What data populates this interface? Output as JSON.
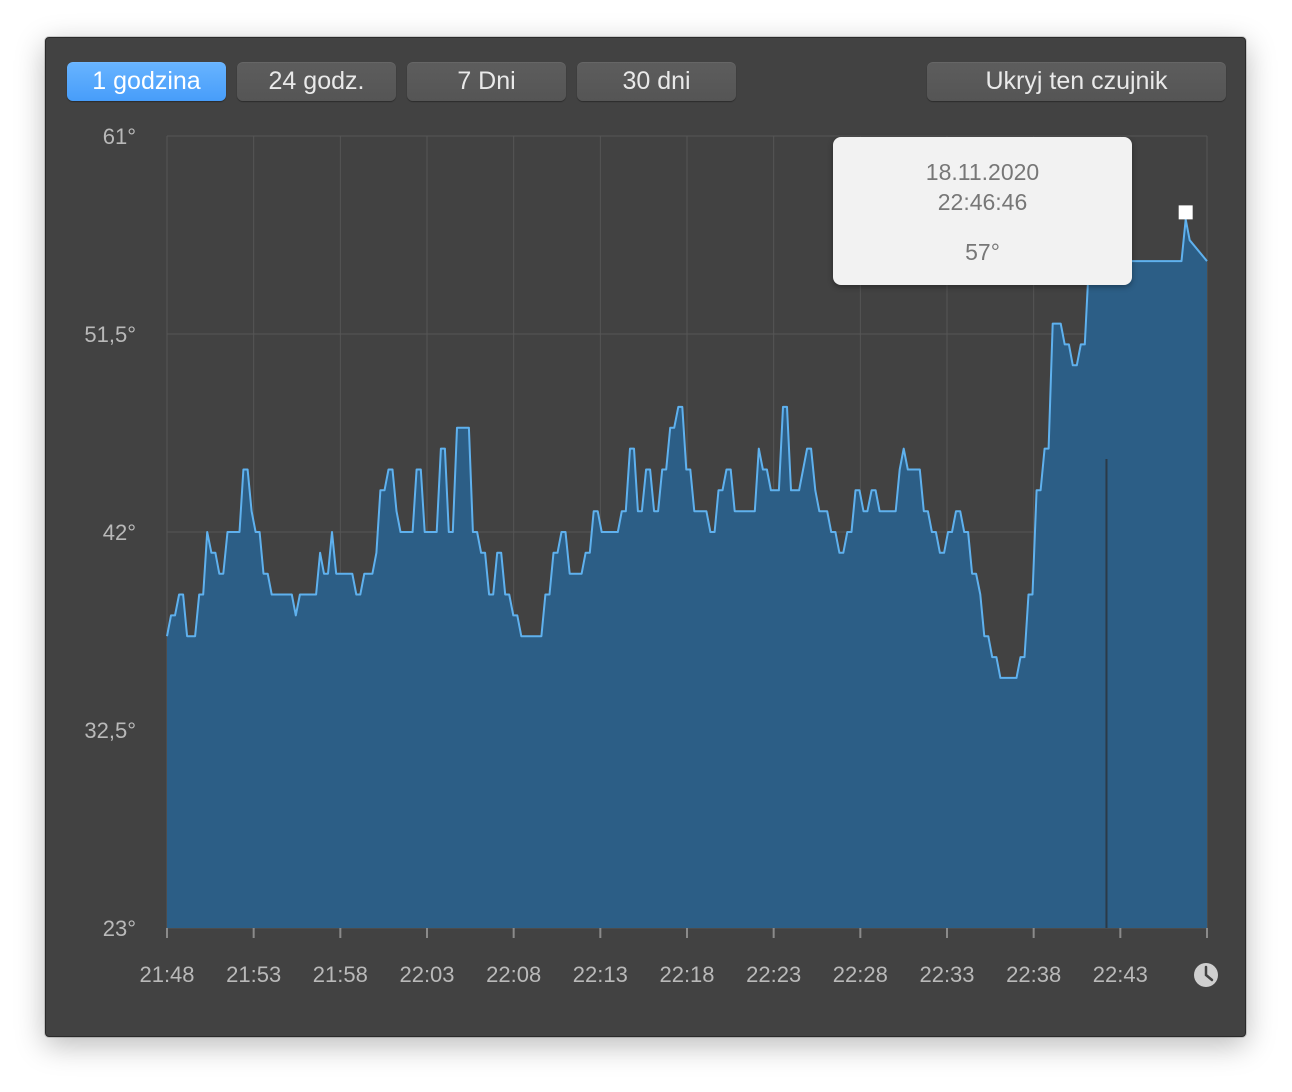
{
  "tabs": [
    {
      "label": "1 godzina",
      "active": true
    },
    {
      "label": "24 godz.",
      "active": false
    },
    {
      "label": "7 Dni",
      "active": false
    },
    {
      "label": "30 dni",
      "active": false
    }
  ],
  "hide_sensor_label": "Ukryj ten czujnik",
  "clock_icon": "clock-icon",
  "colors": {
    "window_bg": "#424242",
    "area_fill": "#2c5e86",
    "line": "#5fb1ee",
    "active_tab": "#55a7fc",
    "tooltip_bg": "#f2f2f2"
  },
  "tooltip": {
    "date": "18.11.2020",
    "time": "22:46:46",
    "value": "57°"
  },
  "chart_data": {
    "type": "area",
    "ylim": [
      23,
      61
    ],
    "y_ticks": [
      {
        "value": 61,
        "label": "61°"
      },
      {
        "value": 51.5,
        "label": "51,5°"
      },
      {
        "value": 42,
        "label": "42°"
      },
      {
        "value": 32.5,
        "label": "32,5°"
      },
      {
        "value": 23,
        "label": "23°"
      }
    ],
    "x_tick_labels": [
      "21:48",
      "21:53",
      "21:58",
      "22:03",
      "22:08",
      "22:13",
      "22:18",
      "22:23",
      "22:28",
      "22:33",
      "22:38",
      "22:43"
    ],
    "x_unit": "minutes since 21:48",
    "x_range": [
      0,
      60
    ],
    "selected_point": {
      "x": 58.77,
      "y": 57
    },
    "series": [
      {
        "points": [
          [
            0,
            37
          ],
          [
            0.23,
            38
          ],
          [
            0.46,
            38
          ],
          [
            0.7,
            39
          ],
          [
            0.93,
            39
          ],
          [
            1.16,
            37
          ],
          [
            1.62,
            37
          ],
          [
            1.86,
            39
          ],
          [
            2.09,
            39
          ],
          [
            2.32,
            42
          ],
          [
            2.56,
            41
          ],
          [
            2.79,
            41
          ],
          [
            3.02,
            40
          ],
          [
            3.25,
            40
          ],
          [
            3.49,
            42
          ],
          [
            3.95,
            42
          ],
          [
            4.18,
            42
          ],
          [
            4.41,
            45
          ],
          [
            4.65,
            45
          ],
          [
            4.88,
            43
          ],
          [
            5.11,
            42
          ],
          [
            5.34,
            42
          ],
          [
            5.57,
            40
          ],
          [
            5.81,
            40
          ],
          [
            6.04,
            39
          ],
          [
            7.2,
            39
          ],
          [
            7.43,
            38
          ],
          [
            7.67,
            39
          ],
          [
            8.13,
            39
          ],
          [
            8.6,
            39
          ],
          [
            8.83,
            41
          ],
          [
            9.06,
            40
          ],
          [
            9.29,
            40
          ],
          [
            9.52,
            42
          ],
          [
            9.76,
            40
          ],
          [
            10.22,
            40
          ],
          [
            10.69,
            40
          ],
          [
            10.92,
            39
          ],
          [
            11.15,
            39
          ],
          [
            11.38,
            40
          ],
          [
            11.85,
            40
          ],
          [
            12.08,
            41
          ],
          [
            12.31,
            44
          ],
          [
            12.55,
            44
          ],
          [
            12.78,
            45
          ],
          [
            13.01,
            45
          ],
          [
            13.24,
            43
          ],
          [
            13.47,
            42
          ],
          [
            14.17,
            42
          ],
          [
            14.4,
            45
          ],
          [
            14.64,
            45
          ],
          [
            14.87,
            42
          ],
          [
            15.1,
            42
          ],
          [
            15.56,
            42
          ],
          [
            15.8,
            46
          ],
          [
            16.03,
            46
          ],
          [
            16.26,
            42
          ],
          [
            16.49,
            42
          ],
          [
            16.73,
            47
          ],
          [
            17.42,
            47
          ],
          [
            17.65,
            42
          ],
          [
            17.89,
            42
          ],
          [
            18.12,
            41
          ],
          [
            18.35,
            41
          ],
          [
            18.58,
            39
          ],
          [
            18.82,
            39
          ],
          [
            19.05,
            41
          ],
          [
            19.28,
            41
          ],
          [
            19.51,
            39
          ],
          [
            19.74,
            39
          ],
          [
            19.98,
            38
          ],
          [
            20.21,
            38
          ],
          [
            20.44,
            37
          ],
          [
            21.6,
            37
          ],
          [
            21.83,
            39
          ],
          [
            22.07,
            39
          ],
          [
            22.3,
            41
          ],
          [
            22.53,
            41
          ],
          [
            22.76,
            42
          ],
          [
            22.99,
            42
          ],
          [
            23.23,
            40
          ],
          [
            23.46,
            40
          ],
          [
            23.92,
            40
          ],
          [
            24.15,
            41
          ],
          [
            24.39,
            41
          ],
          [
            24.62,
            43
          ],
          [
            24.85,
            43
          ],
          [
            25.08,
            42
          ],
          [
            25.31,
            42
          ],
          [
            26.01,
            42
          ],
          [
            26.24,
            43
          ],
          [
            26.47,
            43
          ],
          [
            26.71,
            46
          ],
          [
            26.94,
            46
          ],
          [
            27.17,
            43
          ],
          [
            27.4,
            43
          ],
          [
            27.64,
            45
          ],
          [
            27.87,
            45
          ],
          [
            28.1,
            43
          ],
          [
            28.33,
            43
          ],
          [
            28.57,
            45
          ],
          [
            28.8,
            45
          ],
          [
            29.03,
            47
          ],
          [
            29.26,
            47
          ],
          [
            29.5,
            48
          ],
          [
            29.73,
            48
          ],
          [
            29.96,
            45
          ],
          [
            30.19,
            45
          ],
          [
            30.42,
            43
          ],
          [
            30.66,
            43
          ],
          [
            31.12,
            43
          ],
          [
            31.35,
            42
          ],
          [
            31.59,
            42
          ],
          [
            31.82,
            44
          ],
          [
            32.05,
            44
          ],
          [
            32.28,
            45
          ],
          [
            32.52,
            45
          ],
          [
            32.75,
            43
          ],
          [
            33.21,
            43
          ],
          [
            33.45,
            43
          ],
          [
            33.68,
            43
          ],
          [
            33.91,
            43
          ],
          [
            34.14,
            46
          ],
          [
            34.38,
            45
          ],
          [
            34.61,
            45
          ],
          [
            34.84,
            44
          ],
          [
            35.07,
            44
          ],
          [
            35.3,
            44
          ],
          [
            35.54,
            48
          ],
          [
            35.77,
            48
          ],
          [
            36,
            44
          ],
          [
            36.23,
            44
          ],
          [
            36.47,
            44
          ],
          [
            36.7,
            45
          ],
          [
            36.93,
            46
          ],
          [
            37.16,
            46
          ],
          [
            37.4,
            44
          ],
          [
            37.63,
            43
          ],
          [
            38.09,
            43
          ],
          [
            38.32,
            42
          ],
          [
            38.56,
            42
          ],
          [
            38.79,
            41
          ],
          [
            39.02,
            41
          ],
          [
            39.25,
            42
          ],
          [
            39.49,
            42
          ],
          [
            39.72,
            44
          ],
          [
            39.95,
            44
          ],
          [
            40.18,
            43
          ],
          [
            40.41,
            43
          ],
          [
            40.65,
            44
          ],
          [
            40.88,
            44
          ],
          [
            41.11,
            43
          ],
          [
            41.57,
            43
          ],
          [
            41.81,
            43
          ],
          [
            42.04,
            43
          ],
          [
            42.27,
            45
          ],
          [
            42.5,
            46
          ],
          [
            42.74,
            45
          ],
          [
            42.97,
            45
          ],
          [
            43.2,
            45
          ],
          [
            43.43,
            45
          ],
          [
            43.66,
            43
          ],
          [
            43.9,
            43
          ],
          [
            44.13,
            42
          ],
          [
            44.36,
            42
          ],
          [
            44.59,
            41
          ],
          [
            44.83,
            41
          ],
          [
            45.06,
            42
          ],
          [
            45.29,
            42
          ],
          [
            45.52,
            43
          ],
          [
            45.76,
            43
          ],
          [
            45.99,
            42
          ],
          [
            46.22,
            42
          ],
          [
            46.45,
            40
          ],
          [
            46.68,
            40
          ],
          [
            46.92,
            39
          ],
          [
            47.15,
            37
          ],
          [
            47.38,
            37
          ],
          [
            47.61,
            36
          ],
          [
            47.85,
            36
          ],
          [
            48.08,
            35
          ],
          [
            48.31,
            35
          ],
          [
            48.54,
            35
          ],
          [
            48.77,
            35
          ],
          [
            49.01,
            35
          ],
          [
            49.24,
            36
          ],
          [
            49.47,
            36
          ],
          [
            49.7,
            39
          ],
          [
            49.93,
            39
          ],
          [
            50.17,
            44
          ],
          [
            50.4,
            44
          ],
          [
            50.63,
            46
          ],
          [
            50.86,
            46
          ],
          [
            51.1,
            52
          ],
          [
            51.33,
            52
          ],
          [
            51.56,
            52
          ],
          [
            51.79,
            51
          ],
          [
            52.03,
            51
          ],
          [
            52.26,
            50
          ],
          [
            52.49,
            50
          ],
          [
            52.72,
            51
          ],
          [
            52.95,
            51
          ],
          [
            53.19,
            55
          ],
          [
            53.42,
            55
          ],
          [
            53.65,
            55
          ],
          [
            53.88,
            56
          ],
          [
            54.12,
            56
          ],
          [
            54.35,
            56
          ],
          [
            54.58,
            57
          ],
          [
            54.81,
            57
          ],
          [
            55.04,
            56
          ],
          [
            55.28,
            56
          ],
          [
            55.51,
            55
          ],
          [
            56.2,
            55
          ],
          [
            56.9,
            55
          ],
          [
            57.13,
            55
          ],
          [
            57.36,
            55
          ],
          [
            57.59,
            55
          ],
          [
            57.83,
            55
          ],
          [
            58.06,
            55
          ],
          [
            58.3,
            55
          ],
          [
            58.53,
            55
          ],
          [
            58.77,
            57
          ],
          [
            59,
            56
          ],
          [
            60,
            55
          ]
        ]
      }
    ]
  }
}
